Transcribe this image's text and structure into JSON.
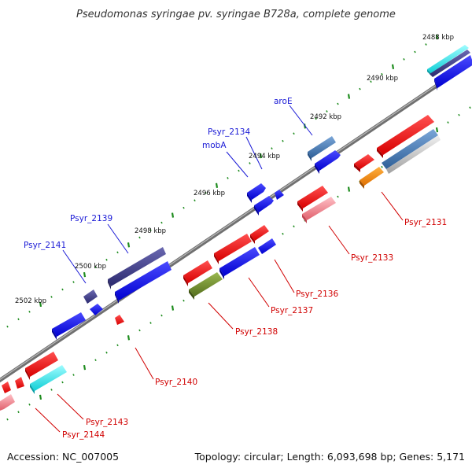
{
  "title": "Pseudomonas syringae pv. syringae B728a, complete genome",
  "footer": {
    "accession": "Accession: NC_007005",
    "summary": "Topology: circular; Length: 6,093,698 bp; Genes: 5,171"
  },
  "ticks": [
    "2488 kbp",
    "2490 kbp",
    "2492 kbp",
    "2494 kbp",
    "2496 kbp",
    "2498 kbp",
    "2500 kbp",
    "2502 kbp"
  ],
  "gene_labels": {
    "aroE": "aroE",
    "psyr_2134": "Psyr_2134",
    "mobA": "mobA",
    "psyr_2139": "Psyr_2139",
    "psyr_2141": "Psyr_2141",
    "psyr_2131": "Psyr_2131",
    "psyr_2133": "Psyr_2133",
    "psyr_2136": "Psyr_2136",
    "psyr_2137": "Psyr_2137",
    "psyr_2138": "Psyr_2138",
    "psyr_2140": "Psyr_2140",
    "psyr_2143": "Psyr_2143",
    "psyr_2144": "Psyr_2144"
  },
  "colors": {
    "backbone": "#808080",
    "blue_gene": "#0b0be8",
    "navy_gene": "#3c3a8a",
    "steel_gene": "#3f74b0",
    "red_gene": "#ff0a0a",
    "pink_gene": "#f07a86",
    "olive_gene": "#6d8a2c",
    "orange_gene": "#ff8c00",
    "cyan_gene": "#22e6ea",
    "tick_dot": "#1e8c1e",
    "label_blue": "#1a1ad6",
    "label_red": "#d10000"
  }
}
